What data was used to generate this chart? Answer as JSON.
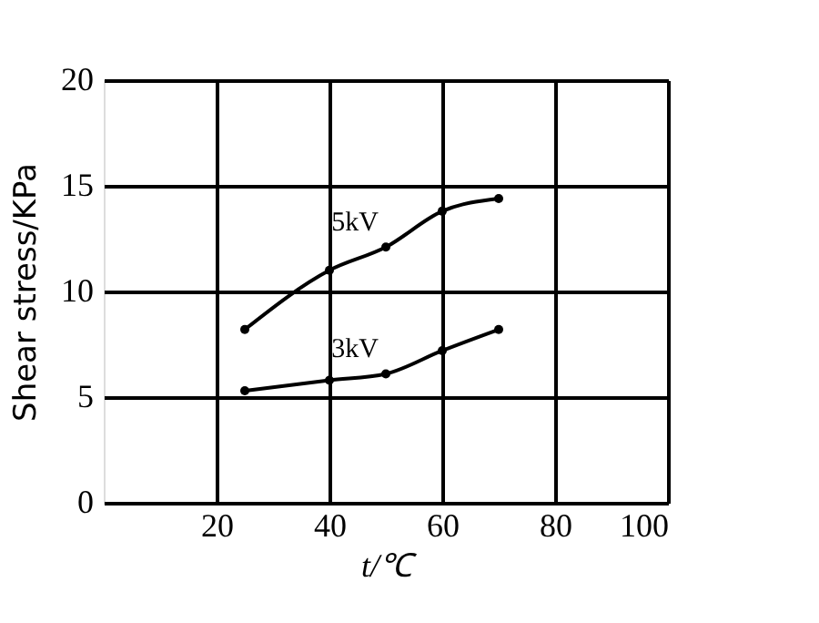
{
  "chart_data": {
    "type": "line",
    "xlabel": "t/℃",
    "ylabel": "Shear stress/KPa",
    "xlim": [
      0,
      100
    ],
    "xticks": [
      20,
      40,
      60,
      80,
      100
    ],
    "ylim": [
      0,
      20
    ],
    "yticks": [
      0,
      5,
      10,
      15,
      20
    ],
    "grid": true,
    "marker": "circle",
    "line_style": "solid",
    "series": [
      {
        "name": "5kV",
        "color": "#000000",
        "x": [
          25,
          40,
          50,
          60,
          70
        ],
        "values": [
          8.2,
          11.0,
          12.1,
          13.8,
          14.4
        ]
      },
      {
        "name": "3kV",
        "color": "#000000",
        "x": [
          25,
          40,
          50,
          60,
          70
        ],
        "values": [
          5.3,
          5.8,
          6.1,
          7.2,
          8.2
        ]
      }
    ]
  }
}
